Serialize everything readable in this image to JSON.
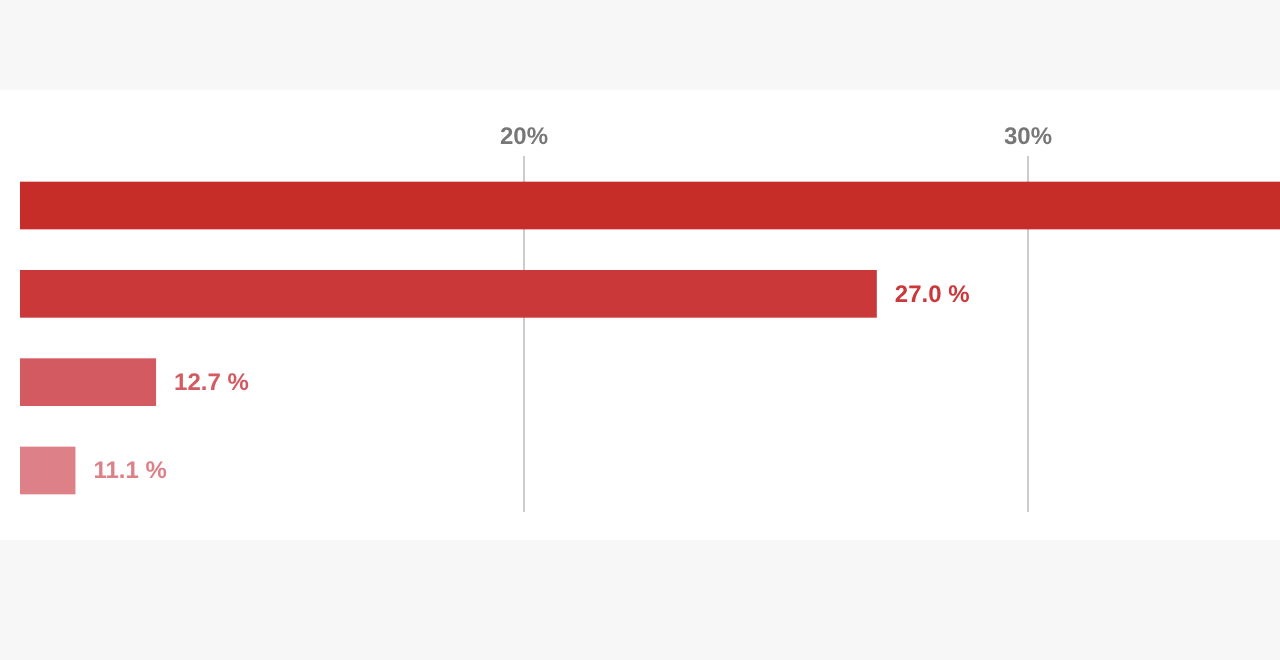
{
  "chart_data": {
    "type": "bar",
    "orientation": "horizontal",
    "categories": [
      null,
      null,
      null,
      null
    ],
    "values": [
      35,
      27.0,
      12.7,
      11.1
    ],
    "colors": [
      "#c62d28",
      "#cb383a",
      "#d45a62",
      "#de8088"
    ],
    "value_labels": [
      null,
      "27.0 %",
      "12.7 %",
      "11.1 %"
    ],
    "xlim": [
      10,
      35
    ],
    "xticks": [
      {
        "value": 20,
        "label": "20%"
      },
      {
        "value": 30,
        "label": "30%"
      }
    ],
    "grid": "x"
  }
}
